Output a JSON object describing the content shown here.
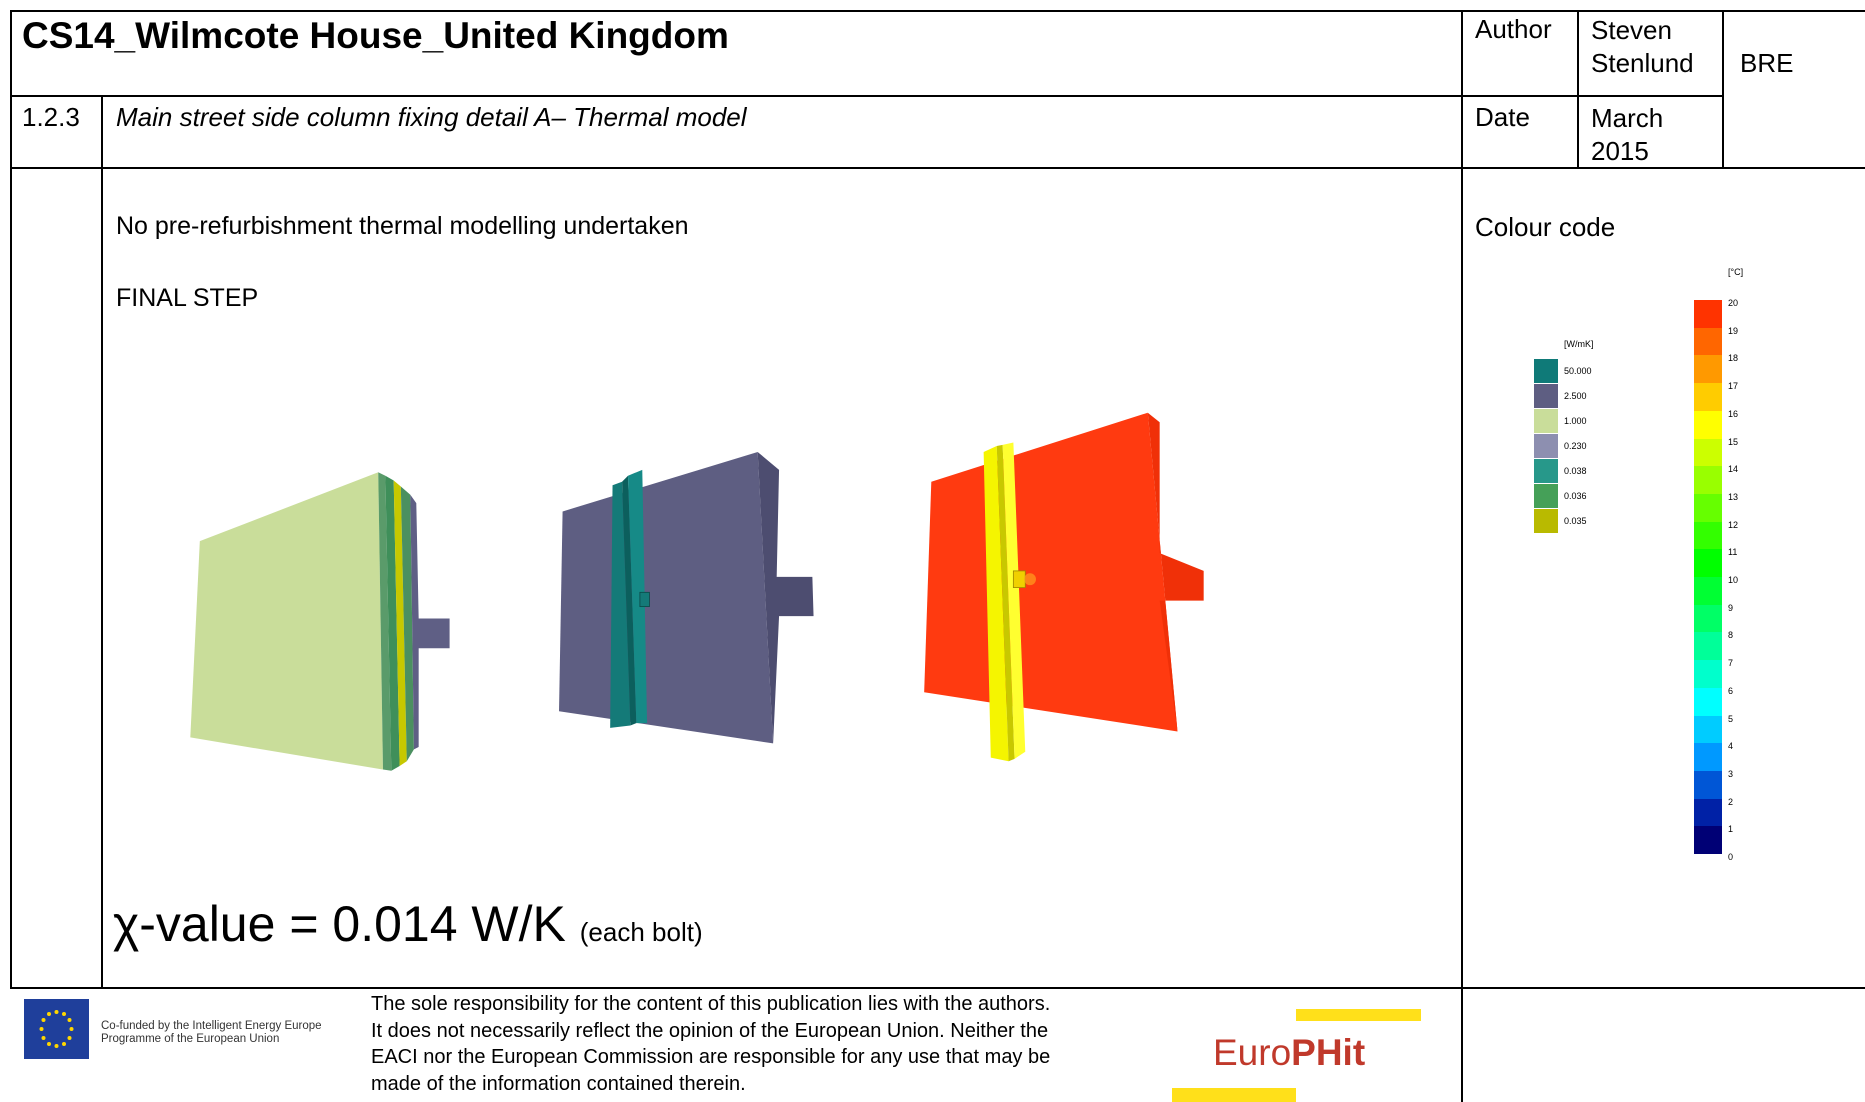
{
  "header": {
    "title": "CS14_Wilmcote House_United Kingdom",
    "author_label": "Author",
    "author": "Steven Stenlund",
    "organisation": "BRE",
    "number": "1.2.3",
    "subtitle": "Main street side column fixing detail A– Thermal model",
    "date_label": "Date",
    "date": "March 2015"
  },
  "body": {
    "note": "No pre-refurbishment thermal modelling undertaken",
    "step": "FINAL STEP",
    "chi_value": "χ-value = 0.014 W/K",
    "chi_note": "(each bolt)"
  },
  "colour_code": {
    "title": "Colour code",
    "conductivity": {
      "unit": "[W/mK]",
      "items": [
        {
          "label": "50.000",
          "color": "#0f7a78"
        },
        {
          "label": "2.500",
          "color": "#5e5e82"
        },
        {
          "label": "1.000",
          "color": "#c9dd9a"
        },
        {
          "label": "0.230",
          "color": "#8d8fb0"
        },
        {
          "label": "0.038",
          "color": "#27988a"
        },
        {
          "label": "0.036",
          "color": "#45a058"
        },
        {
          "label": "0.035",
          "color": "#b9ba00"
        }
      ]
    },
    "temperature": {
      "unit": "[°C]",
      "labels": [
        20,
        19,
        18,
        17,
        16,
        15,
        14,
        13,
        12,
        11,
        10,
        9,
        8,
        7,
        6,
        5,
        4,
        3,
        2,
        1,
        0
      ]
    }
  },
  "footer": {
    "eu_text": [
      "Co-funded by the Intelligent Energy Europe",
      "Programme of the European Union"
    ],
    "disclaimer": [
      "The sole responsibility for the content of this publication lies with the authors.",
      "It does not necessarily reflect the opinion of the European Union. Neither the",
      "EACI nor the European Commission are responsible for any use that may be",
      "made of the information contained therein."
    ],
    "logo": {
      "prefix": "Euro",
      "suffix": "PHit"
    }
  }
}
